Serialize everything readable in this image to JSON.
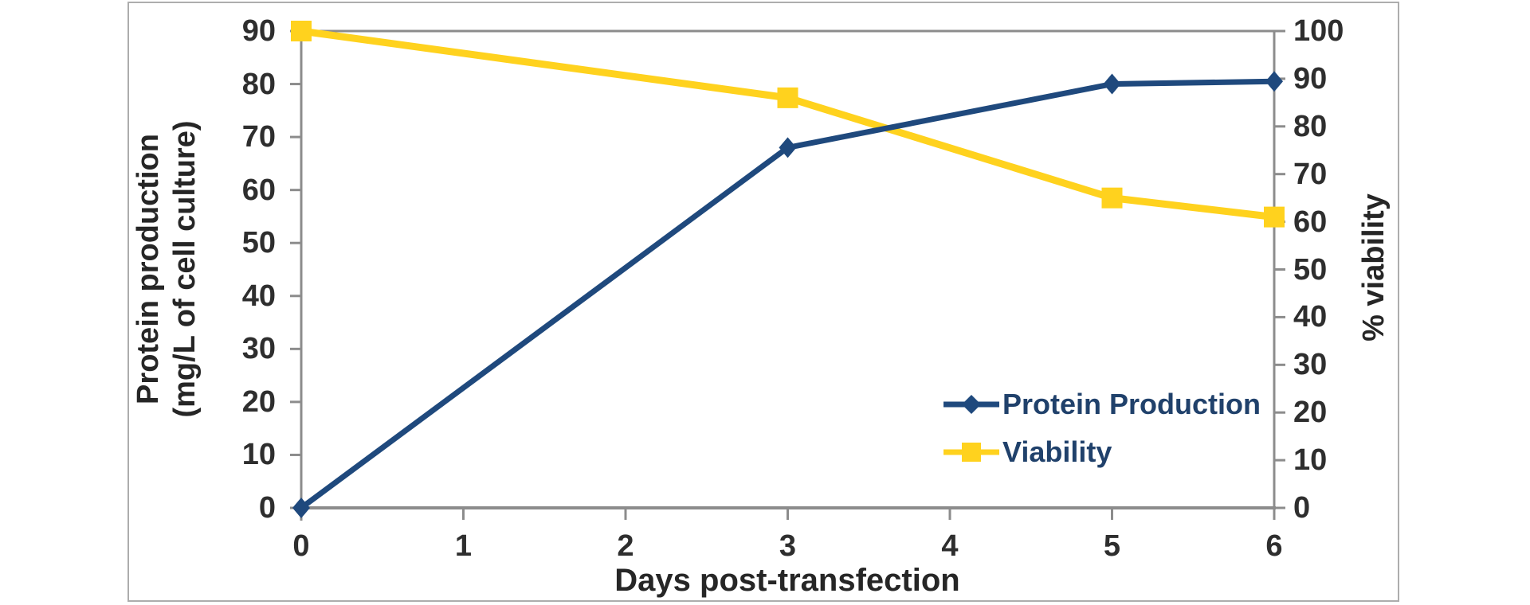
{
  "chart_data": {
    "type": "line",
    "title": "",
    "x": [
      0,
      3,
      5,
      6
    ],
    "x_axis": {
      "label": "Days post-transfection",
      "min": 0,
      "max": 6,
      "ticks": [
        0,
        1,
        2,
        3,
        4,
        5,
        6
      ]
    },
    "y_left": {
      "label_lines": [
        "Protein production",
        "(mg/L of cell culture)"
      ],
      "min": 0,
      "max": 90,
      "ticks": [
        0,
        10,
        20,
        30,
        40,
        50,
        60,
        70,
        80,
        90
      ]
    },
    "y_right": {
      "label": "% viability",
      "min": 0,
      "max": 100,
      "ticks": [
        0,
        10,
        20,
        30,
        40,
        50,
        60,
        70,
        80,
        90,
        100
      ]
    },
    "series": [
      {
        "name": "Protein Production",
        "axis": "left",
        "color": "#1F497D",
        "marker": "diamond",
        "values": [
          0,
          68,
          80,
          80.5
        ]
      },
      {
        "name": "Viability",
        "axis": "right",
        "color": "#FFD21E",
        "marker": "square",
        "values": [
          100,
          86,
          65,
          61
        ]
      }
    ],
    "legend": {
      "position": "inside-bottom-right",
      "entries": [
        "Protein Production",
        "Viability"
      ]
    },
    "grid": "off",
    "colors": {
      "axis_line": "#8c8c8c",
      "tick_text": "#2e2e2e",
      "axis_title_text": "#262626",
      "legend_text": "#20416b",
      "frame_border": "#adadad",
      "background": "#ffffff"
    }
  }
}
